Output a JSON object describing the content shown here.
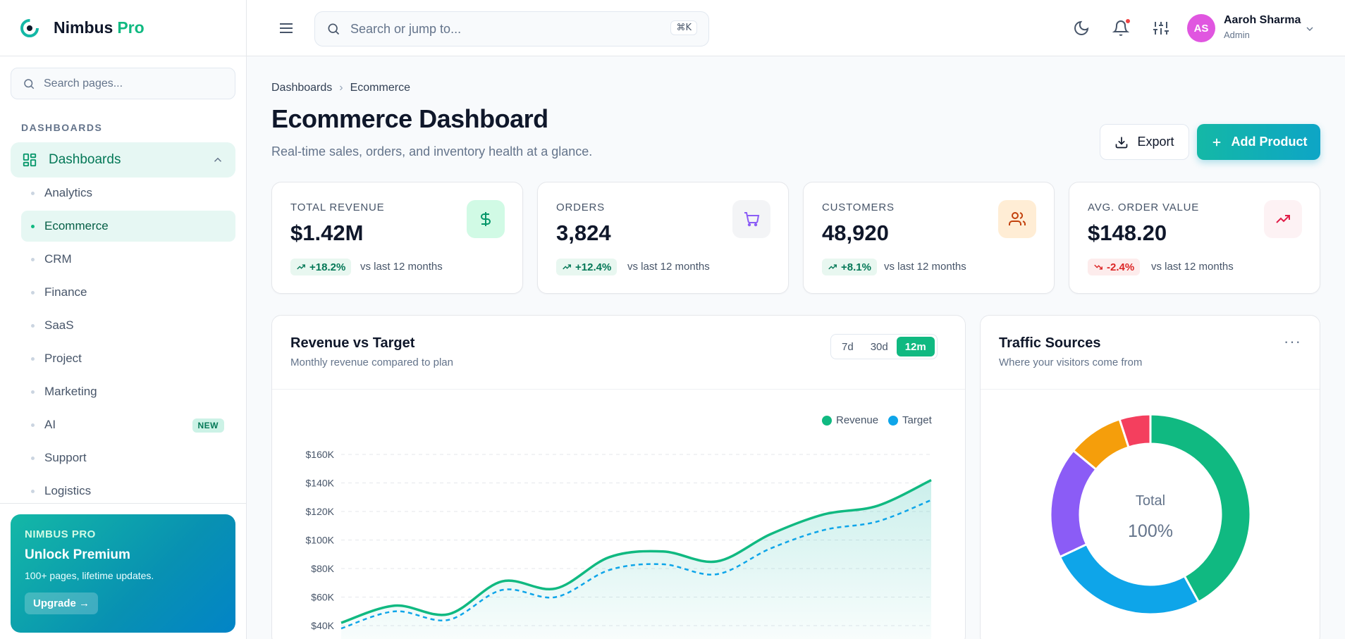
{
  "brand": {
    "name": "Nimbus",
    "accent": "Pro"
  },
  "sidebar": {
    "search_placeholder": "Search pages...",
    "section": "DASHBOARDS",
    "group_label": "Dashboards",
    "items": [
      {
        "label": "Analytics"
      },
      {
        "label": "Ecommerce",
        "active": true
      },
      {
        "label": "CRM"
      },
      {
        "label": "Finance"
      },
      {
        "label": "SaaS"
      },
      {
        "label": "Project"
      },
      {
        "label": "Marketing"
      },
      {
        "label": "AI",
        "badge": "NEW"
      },
      {
        "label": "Support"
      },
      {
        "label": "Logistics"
      }
    ],
    "promo": {
      "kicker": "NIMBUS PRO",
      "title": "Unlock Premium",
      "subtitle": "100+ pages, lifetime updates.",
      "button": "Upgrade →"
    }
  },
  "topbar": {
    "search_placeholder": "Search or jump to...",
    "shortcut": "⌘K",
    "user": {
      "initials": "AS",
      "name": "Aaroh Sharma",
      "role": "Admin"
    }
  },
  "page": {
    "breadcrumb": [
      "Dashboards",
      "Ecommerce"
    ],
    "title": "Ecommerce Dashboard",
    "subtitle": "Real-time sales, orders, and inventory health at a glance.",
    "export_label": "Export",
    "add_label": "Add Product"
  },
  "kpis": [
    {
      "label": "TOTAL REVENUE",
      "value": "$1.42M",
      "change": "+18.2%",
      "trend": "up",
      "period": "vs last 12 months",
      "icon": "dollar-icon",
      "icon_bg": "#d1fae5",
      "icon_color": "#059669"
    },
    {
      "label": "ORDERS",
      "value": "3,824",
      "change": "+12.4%",
      "trend": "up",
      "period": "vs last 12 months",
      "icon": "cart-icon",
      "icon_bg": "#f3f4f6",
      "icon_color": "#8b5cf6"
    },
    {
      "label": "CUSTOMERS",
      "value": "48,920",
      "change": "+8.1%",
      "trend": "up",
      "period": "vs last 12 months",
      "icon": "users-icon",
      "icon_bg": "#ffedd5",
      "icon_color": "#c2410c"
    },
    {
      "label": "AVG. ORDER VALUE",
      "value": "$148.20",
      "change": "-2.4%",
      "trend": "down",
      "period": "vs last 12 months",
      "icon": "trend-up-icon",
      "icon_bg": "#fdf2f4",
      "icon_color": "#e11d48"
    }
  ],
  "revenue_card": {
    "title": "Revenue vs Target",
    "subtitle": "Monthly revenue compared to plan",
    "ranges": [
      "7d",
      "30d",
      "12m"
    ],
    "active_range": "12m"
  },
  "traffic_card": {
    "title": "Traffic Sources",
    "subtitle": "Where your visitors come from",
    "center_label": "Total",
    "center_value": "100%"
  },
  "colors": {
    "revenue": "#10b981",
    "target": "#0ea5e9"
  },
  "chart_data": [
    {
      "type": "area",
      "title": "",
      "ylim": [
        40,
        160
      ],
      "ytick_labels": [
        "$40K",
        "$60K",
        "$80K",
        "$100K",
        "$120K",
        "$140K",
        "$160K"
      ],
      "yticks": [
        40,
        60,
        80,
        100,
        120,
        140,
        160
      ],
      "grid": true,
      "legend": "top-right",
      "series": [
        {
          "name": "Revenue",
          "color": "#10b981",
          "style": "solid",
          "values": [
            42,
            54,
            48,
            71,
            66,
            88,
            92,
            85,
            104,
            118,
            124,
            142
          ]
        },
        {
          "name": "Target",
          "color": "#0ea5e9",
          "style": "dashed",
          "values": [
            38,
            50,
            44,
            65,
            60,
            79,
            83,
            76,
            94,
            107,
            113,
            128
          ]
        }
      ]
    },
    {
      "type": "pie",
      "title": "",
      "donut": true,
      "slices": [
        {
          "value": 42,
          "color": "#10b981"
        },
        {
          "value": 26,
          "color": "#0ea5e9"
        },
        {
          "value": 18,
          "color": "#8b5cf6"
        },
        {
          "value": 9,
          "color": "#f59e0b"
        },
        {
          "value": 5,
          "color": "#f43f5e"
        }
      ]
    }
  ]
}
